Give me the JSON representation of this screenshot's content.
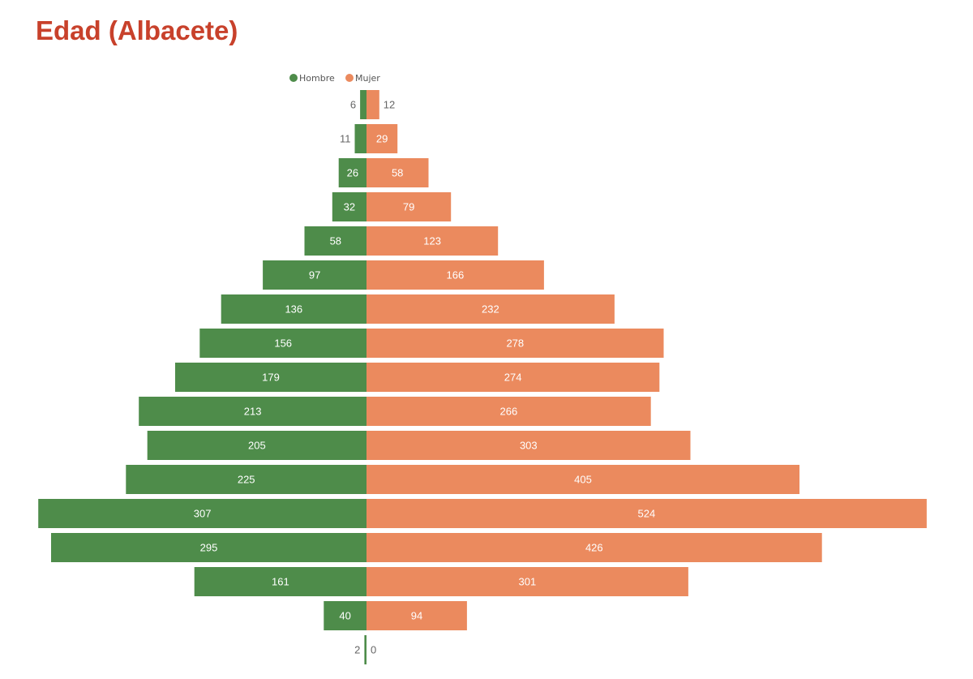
{
  "page": {
    "title": "Edad (Albacete)"
  },
  "chart_data": {
    "type": "bar",
    "orientation": "horizontal-butterfly",
    "series": [
      {
        "name": "Hombre",
        "color": "#4e8c4a",
        "values": [
          6,
          11,
          26,
          32,
          58,
          97,
          136,
          156,
          179,
          213,
          205,
          225,
          307,
          295,
          161,
          40,
          2
        ]
      },
      {
        "name": "Mujer",
        "color": "#eb8a5e",
        "values": [
          12,
          29,
          58,
          79,
          123,
          166,
          232,
          278,
          274,
          266,
          303,
          405,
          524,
          426,
          301,
          94,
          0
        ]
      }
    ],
    "legend_position": "top-center",
    "grid": false,
    "axes_visible": false,
    "label_colors": {
      "inside": "#ffffff",
      "outside": "#666666"
    }
  }
}
